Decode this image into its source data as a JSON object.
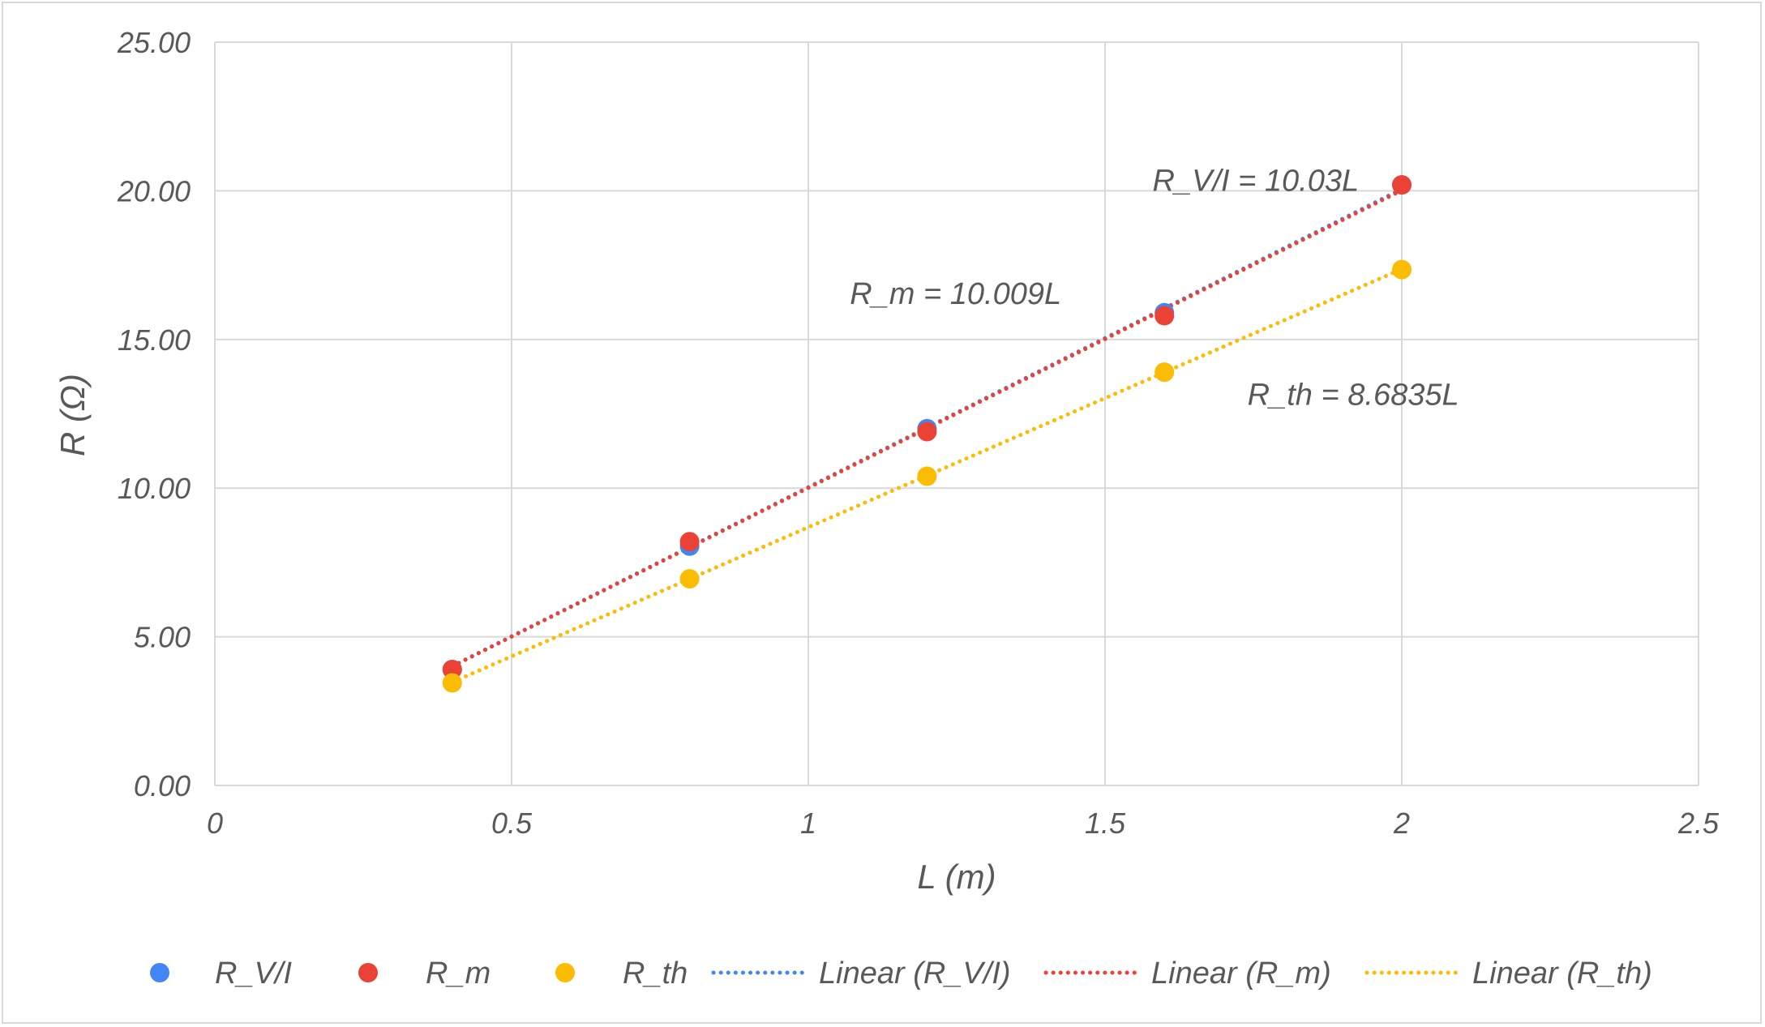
{
  "chart_data": {
    "type": "scatter",
    "xlabel": "L (m)",
    "ylabel": "R (Ω)",
    "xlim": [
      0,
      2.5
    ],
    "ylim": [
      0,
      25
    ],
    "x_ticks": [
      "0",
      "0.5",
      "1",
      "1.5",
      "2",
      "2.5"
    ],
    "y_ticks": [
      "0.00",
      "5.00",
      "10.00",
      "15.00",
      "20.00",
      "25.00"
    ],
    "grid": true,
    "legend_position": "bottom",
    "series": [
      {
        "name": "R_V/I",
        "color": "#4285f4",
        "x": [
          0.4,
          0.8,
          1.2,
          1.6,
          2.0
        ],
        "y": [
          3.9,
          8.05,
          12.0,
          15.9,
          20.2
        ]
      },
      {
        "name": "R_m",
        "color": "#ea4335",
        "x": [
          0.4,
          0.8,
          1.2,
          1.6,
          2.0
        ],
        "y": [
          3.9,
          8.2,
          11.9,
          15.8,
          20.2
        ]
      },
      {
        "name": "R_th",
        "color": "#fbbc04",
        "x": [
          0.4,
          0.8,
          1.2,
          1.6,
          2.0
        ],
        "y": [
          3.45,
          6.95,
          10.4,
          13.9,
          17.35
        ]
      }
    ],
    "trendlines": [
      {
        "name": "Linear (R_V/I)",
        "color": "#4285f4",
        "slope": 10.03,
        "x_range": [
          0.4,
          2.0
        ],
        "label": "R_V/I = 10.03L",
        "label_at": [
          1.58,
          20.0
        ]
      },
      {
        "name": "Linear (R_m)",
        "color": "#ea4335",
        "slope": 10.009,
        "x_range": [
          0.4,
          2.0
        ],
        "label": "R_m = 10.009L",
        "label_at": [
          1.07,
          16.2
        ]
      },
      {
        "name": "Linear (R_th)",
        "color": "#fbbc04",
        "slope": 8.6835,
        "x_range": [
          0.4,
          2.0
        ],
        "label": "R_th = 8.6835L",
        "label_at": [
          1.74,
          12.8
        ]
      }
    ]
  }
}
